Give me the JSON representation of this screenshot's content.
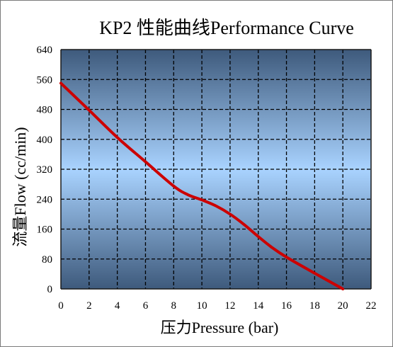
{
  "chart_data": {
    "type": "line",
    "title": "KP2 性能曲线Performance Curve",
    "xlabel": "压力Pressure (bar)",
    "ylabel": "流量Flow (cc/min)",
    "xlim": [
      0,
      22
    ],
    "ylim": [
      0,
      640
    ],
    "xticks": [
      0,
      2,
      4,
      6,
      8,
      10,
      12,
      14,
      16,
      18,
      20,
      22
    ],
    "yticks": [
      0,
      80,
      160,
      240,
      320,
      400,
      480,
      560,
      640
    ],
    "grid": true,
    "series": [
      {
        "color": "#cc0000",
        "x": [
          0,
          2,
          4,
          6,
          8,
          9,
          10,
          11,
          12,
          13,
          14,
          15,
          16,
          18,
          20
        ],
        "y": [
          550,
          478,
          405,
          340,
          275,
          252,
          238,
          222,
          200,
          172,
          140,
          110,
          85,
          42,
          0
        ]
      }
    ],
    "colors": {
      "plot_edge": "#3e5a7c",
      "plot_center": "#a9d3ff",
      "grid": "#000000"
    }
  }
}
